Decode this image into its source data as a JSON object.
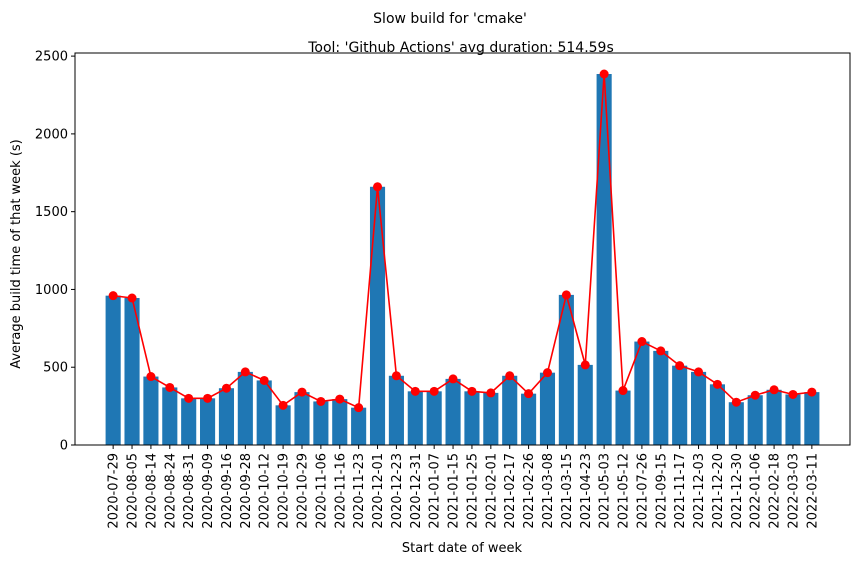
{
  "colors": {
    "bar": "#1f77b4",
    "line": "#ff0000"
  },
  "chart_data": {
    "type": "bar",
    "suptitle": "Slow build for 'cmake'",
    "title": "Tool: 'Github Actions' avg duration: 514.59s",
    "xlabel": "Start date of week",
    "ylabel": "Average build time of that week (s)",
    "ylim": [
      0,
      2520
    ],
    "yticks": [
      0,
      500,
      1000,
      1500,
      2000,
      2500
    ],
    "grid": false,
    "categories": [
      "2020-07-29",
      "2020-08-05",
      "2020-08-14",
      "2020-08-24",
      "2020-08-31",
      "2020-09-09",
      "2020-09-16",
      "2020-09-28",
      "2020-10-12",
      "2020-10-19",
      "2020-10-29",
      "2020-11-06",
      "2020-11-16",
      "2020-11-23",
      "2020-12-01",
      "2020-12-23",
      "2020-12-31",
      "2021-01-07",
      "2021-01-15",
      "2021-01-25",
      "2021-02-01",
      "2021-02-17",
      "2021-02-26",
      "2021-03-08",
      "2021-03-15",
      "2021-04-23",
      "2021-05-03",
      "2021-05-12",
      "2021-07-26",
      "2021-09-15",
      "2021-11-17",
      "2021-12-03",
      "2021-12-20",
      "2021-12-30",
      "2022-01-06",
      "2022-02-18",
      "2022-03-03",
      "2022-03-11"
    ],
    "series": [
      {
        "kind": "bar",
        "values": [
          960,
          945,
          440,
          370,
          300,
          300,
          365,
          470,
          415,
          255,
          340,
          280,
          295,
          240,
          1660,
          445,
          345,
          345,
          425,
          345,
          335,
          445,
          330,
          465,
          965,
          515,
          2385,
          350,
          665,
          605,
          510,
          470,
          390,
          275,
          320,
          355,
          325,
          340
        ]
      },
      {
        "kind": "line",
        "marker": "circle",
        "values": [
          960,
          945,
          440,
          370,
          300,
          300,
          365,
          470,
          415,
          255,
          340,
          280,
          295,
          240,
          1660,
          445,
          345,
          345,
          425,
          345,
          335,
          445,
          330,
          465,
          965,
          515,
          2385,
          350,
          665,
          605,
          510,
          470,
          390,
          275,
          320,
          355,
          325,
          340
        ]
      }
    ]
  }
}
